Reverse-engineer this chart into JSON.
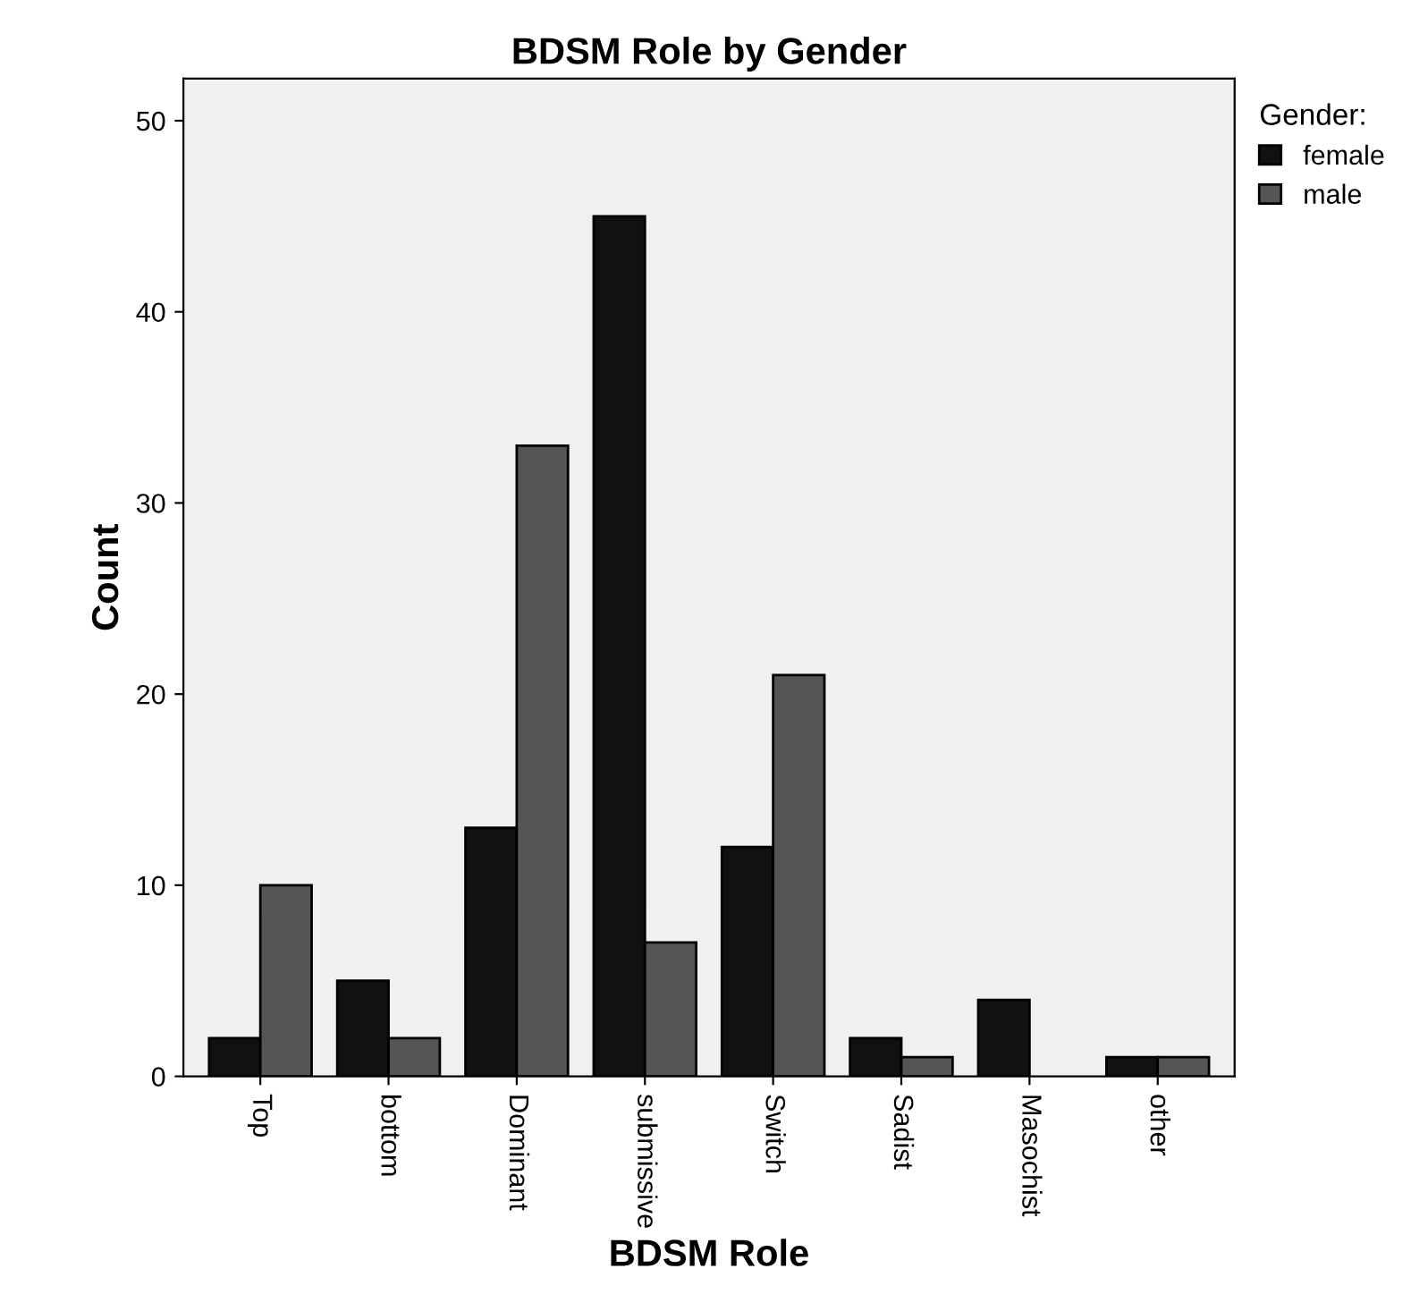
{
  "chart_data": {
    "type": "bar",
    "title": "BDSM Role by Gender",
    "xlabel": "BDSM Role",
    "ylabel": "Count",
    "legend_title": "Gender:",
    "categories": [
      "Top",
      "bottom",
      "Dominant",
      "submissive",
      "Switch",
      "Sadist",
      "Masochist",
      "other"
    ],
    "series": [
      {
        "name": "female",
        "color": "#111111",
        "values": [
          2,
          5,
          13,
          45,
          12,
          2,
          4,
          1
        ]
      },
      {
        "name": "male",
        "color": "#555555",
        "values": [
          10,
          2,
          33,
          7,
          21,
          1,
          null,
          1
        ]
      }
    ],
    "ylim": [
      0,
      52.2
    ],
    "yticks": [
      0,
      10,
      20,
      30,
      40,
      50
    ],
    "grid": false,
    "legend": "top right"
  }
}
